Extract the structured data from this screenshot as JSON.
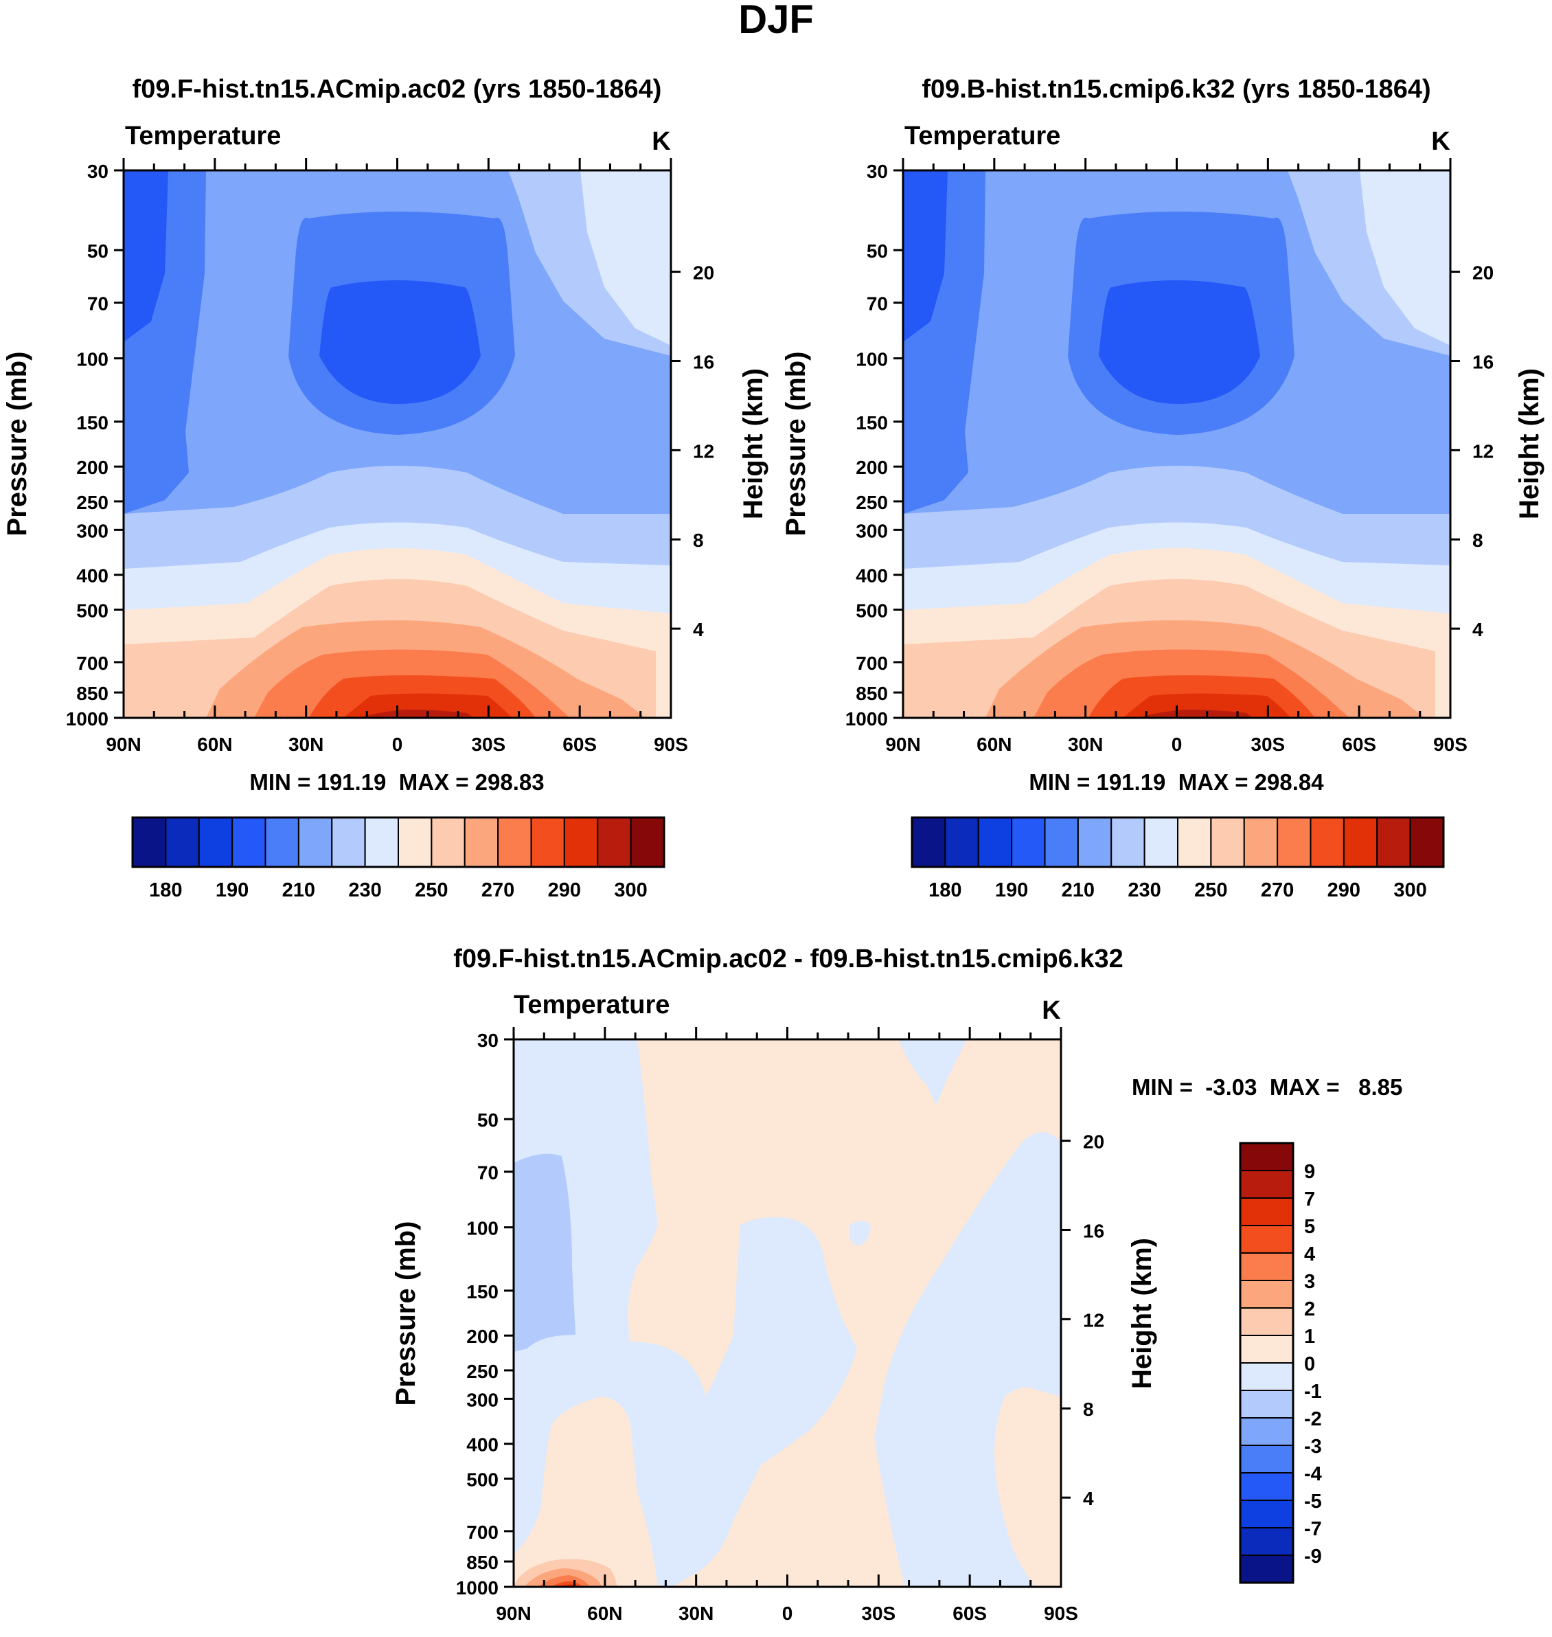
{
  "figure": {
    "title": "DJF",
    "field_label": "Temperature",
    "units": "K"
  },
  "chart_data": [
    {
      "type": "contour",
      "title": "f09.F-hist.tn15.ACmip.ac02 (yrs 1850-1864)",
      "subtitle": "Temperature",
      "units": "K",
      "xlabel": "",
      "ylabel": "Pressure (mb)",
      "y2label": "Height (km)",
      "x_ticklabels": [
        "90N",
        "60N",
        "30N",
        "0",
        "30S",
        "60S",
        "90S"
      ],
      "y_ticklabels": [
        "30",
        "50",
        "70",
        "100",
        "150",
        "200",
        "250",
        "300",
        "400",
        "500",
        "700",
        "850",
        "1000"
      ],
      "y2_ticklabels": [
        "20",
        "16",
        "12",
        "8",
        "4"
      ],
      "stats": "MIN = 191.19  MAX = 298.83",
      "min": 191.19,
      "max": 298.83,
      "colorbar_labels": [
        "180",
        "190",
        "210",
        "230",
        "250",
        "270",
        "290",
        "300"
      ],
      "colorbar_colors": [
        "#0a1489",
        "#0b2bbd",
        "#0e3fe0",
        "#2458f7",
        "#4a7ef9",
        "#7ea6fa",
        "#b3cbfc",
        "#dde9fc",
        "#fde8d8",
        "#fccbb0",
        "#fca67e",
        "#fb7c4c",
        "#f34e1e",
        "#e23108",
        "#b71c0d",
        "#870808"
      ]
    },
    {
      "type": "contour",
      "title": "f09.B-hist.tn15.cmip6.k32 (yrs 1850-1864)",
      "subtitle": "Temperature",
      "units": "K",
      "xlabel": "",
      "ylabel": "Pressure (mb)",
      "y2label": "Height (km)",
      "x_ticklabels": [
        "90N",
        "60N",
        "30N",
        "0",
        "30S",
        "60S",
        "90S"
      ],
      "y_ticklabels": [
        "30",
        "50",
        "70",
        "100",
        "150",
        "200",
        "250",
        "300",
        "400",
        "500",
        "700",
        "850",
        "1000"
      ],
      "y2_ticklabels": [
        "20",
        "16",
        "12",
        "8",
        "4"
      ],
      "stats": "MIN = 191.19  MAX = 298.84",
      "min": 191.19,
      "max": 298.84,
      "colorbar_labels": [
        "180",
        "190",
        "210",
        "230",
        "250",
        "270",
        "290",
        "300"
      ],
      "colorbar_colors": [
        "#0a1489",
        "#0b2bbd",
        "#0e3fe0",
        "#2458f7",
        "#4a7ef9",
        "#7ea6fa",
        "#b3cbfc",
        "#dde9fc",
        "#fde8d8",
        "#fccbb0",
        "#fca67e",
        "#fb7c4c",
        "#f34e1e",
        "#e23108",
        "#b71c0d",
        "#870808"
      ]
    },
    {
      "type": "contour",
      "title": "f09.F-hist.tn15.ACmip.ac02 - f09.B-hist.tn15.cmip6.k32",
      "subtitle": "Temperature",
      "units": "K",
      "xlabel": "",
      "ylabel": "Pressure (mb)",
      "y2label": "Height (km)",
      "x_ticklabels": [
        "90N",
        "60N",
        "30N",
        "0",
        "30S",
        "60S",
        "90S"
      ],
      "y_ticklabels": [
        "30",
        "50",
        "70",
        "100",
        "150",
        "200",
        "250",
        "300",
        "400",
        "500",
        "700",
        "850",
        "1000"
      ],
      "y2_ticklabels": [
        "20",
        "16",
        "12",
        "8",
        "4"
      ],
      "stats": "MIN =  -3.03  MAX =   8.85",
      "min": -3.03,
      "max": 8.85,
      "colorbar_labels": [
        "9",
        "7",
        "5",
        "4",
        "3",
        "2",
        "1",
        "0",
        "-1",
        "-2",
        "-3",
        "-4",
        "-5",
        "-7",
        "-9"
      ],
      "colorbar_colors": [
        "#870808",
        "#b71c0d",
        "#e23108",
        "#f34e1e",
        "#fb7c4c",
        "#fca67e",
        "#fccbb0",
        "#fde8d8",
        "#dde9fc",
        "#b3cbfc",
        "#7ea6fa",
        "#4a7ef9",
        "#2458f7",
        "#0e3fe0",
        "#0b2bbd",
        "#0a1489"
      ]
    }
  ]
}
